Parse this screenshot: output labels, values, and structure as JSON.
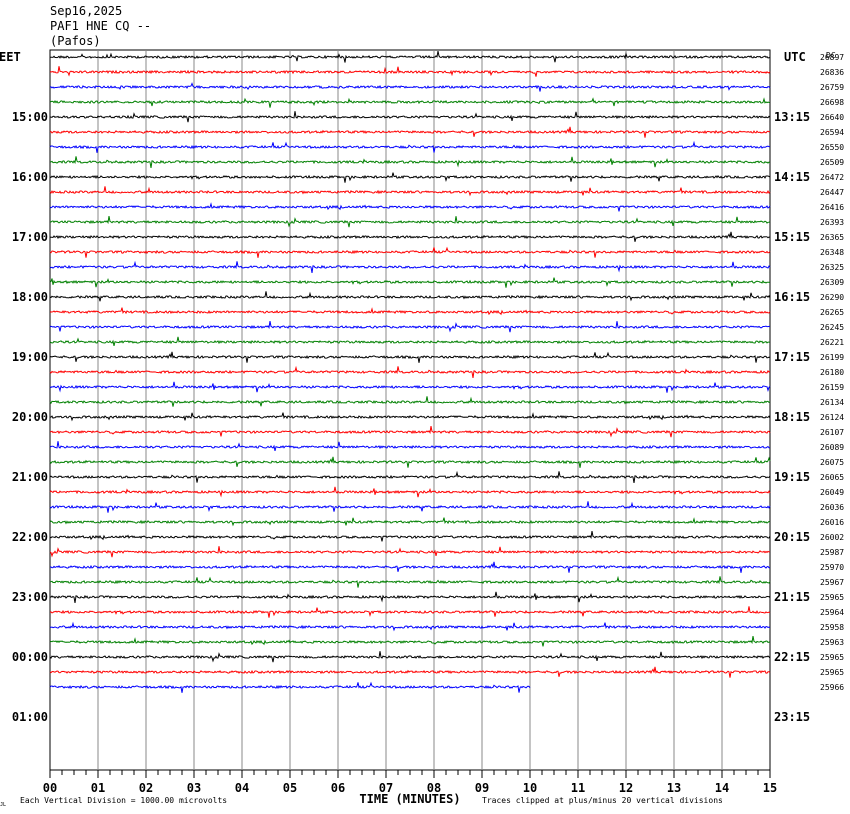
{
  "header": {
    "date": "Sep16,2025",
    "station": "PAF1 HNE CQ --",
    "location": "(Pafos)"
  },
  "chart_data": {
    "type": "line",
    "left_timezone": "EET",
    "right_timezone": "UTC",
    "corner_label": "DC",
    "xlabel": "TIME (MINUTES)",
    "xlim": [
      0,
      15
    ],
    "x_ticks": [
      "00",
      "01",
      "02",
      "03",
      "04",
      "05",
      "06",
      "07",
      "08",
      "09",
      "10",
      "11",
      "12",
      "13",
      "14",
      "15"
    ],
    "left_hour_labels": [
      "15:00",
      "16:00",
      "17:00",
      "18:00",
      "19:00",
      "20:00",
      "21:00",
      "22:00",
      "23:00",
      "00:00",
      "01:00"
    ],
    "right_hour_labels": [
      "13:15",
      "14:15",
      "15:15",
      "16:15",
      "17:15",
      "18:15",
      "19:15",
      "20:15",
      "21:15",
      "22:15",
      "23:15"
    ],
    "trace_colors": [
      "#000000",
      "#ff0000",
      "#0000ff",
      "#008000"
    ],
    "trace_dc_offsets": [
      "26897",
      "26836",
      "26759",
      "26698",
      "26640",
      "26594",
      "26550",
      "26509",
      "26472",
      "26447",
      "26416",
      "26393",
      "26365",
      "26348",
      "26325",
      "26309",
      "26290",
      "26265",
      "26245",
      "26221",
      "26199",
      "26180",
      "26159",
      "26134",
      "26124",
      "26107",
      "26089",
      "26075",
      "26065",
      "26049",
      "26036",
      "26016",
      "26002",
      "25987",
      "25970",
      "25967",
      "25965",
      "25964",
      "25958",
      "25963",
      "25965",
      "25965",
      "25966"
    ],
    "last_trace_end_minute": 10,
    "footer_left": "Each Vertical Division = 1000.00 microvolts",
    "footer_right": "Traces clipped at plus/minus 20 vertical divisions",
    "footer_mark": "JL"
  }
}
